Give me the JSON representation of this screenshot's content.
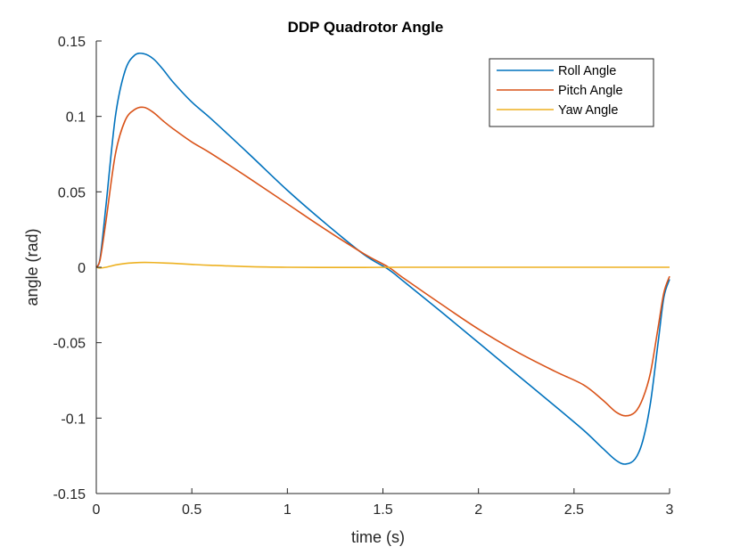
{
  "chart_data": {
    "type": "line",
    "title": "DDP Quadrotor Angle",
    "xlabel": "time (s)",
    "ylabel": "angle (rad)",
    "xlim": [
      0,
      3
    ],
    "ylim": [
      -0.15,
      0.15
    ],
    "xticks": [
      0,
      0.5,
      1,
      1.5,
      2,
      2.5,
      3
    ],
    "xtick_labels": [
      "0",
      "0.5",
      "1",
      "1.5",
      "2",
      "2.5",
      "3"
    ],
    "yticks": [
      -0.15,
      -0.1,
      -0.05,
      0,
      0.05,
      0.1,
      0.15
    ],
    "ytick_labels": [
      "-0.15",
      "-0.1",
      "-0.05",
      "0",
      "0.05",
      "0.1",
      "0.15"
    ],
    "grid": false,
    "legend_position": "top-right",
    "series": [
      {
        "name": "Roll Angle",
        "color": "#0072BD",
        "x": [
          0,
          0.02,
          0.05,
          0.1,
          0.15,
          0.2,
          0.25,
          0.3,
          0.35,
          0.4,
          0.5,
          0.6,
          0.8,
          1.0,
          1.2,
          1.4,
          1.53,
          1.6,
          1.8,
          2.0,
          2.2,
          2.4,
          2.55,
          2.65,
          2.72,
          2.77,
          2.82,
          2.86,
          2.9,
          2.94,
          2.97,
          3.0
        ],
        "y": [
          0,
          0.006,
          0.04,
          0.1,
          0.13,
          0.1405,
          0.1415,
          0.138,
          0.131,
          0.123,
          0.1095,
          0.0985,
          0.075,
          0.051,
          0.029,
          0.0085,
          -0.0015,
          -0.0085,
          -0.029,
          -0.05,
          -0.071,
          -0.092,
          -0.108,
          -0.12,
          -0.128,
          -0.1305,
          -0.127,
          -0.115,
          -0.09,
          -0.05,
          -0.02,
          -0.008
        ]
      },
      {
        "name": "Pitch Angle",
        "color": "#D95319",
        "x": [
          0,
          0.02,
          0.05,
          0.1,
          0.15,
          0.2,
          0.25,
          0.3,
          0.35,
          0.4,
          0.5,
          0.6,
          0.8,
          1.0,
          1.2,
          1.4,
          1.53,
          1.6,
          1.8,
          2.0,
          2.2,
          2.4,
          2.55,
          2.65,
          2.72,
          2.77,
          2.82,
          2.86,
          2.9,
          2.94,
          2.97,
          3.0
        ],
        "y": [
          0,
          0.005,
          0.03,
          0.075,
          0.097,
          0.1045,
          0.106,
          0.1025,
          0.097,
          0.092,
          0.083,
          0.0755,
          0.059,
          0.042,
          0.025,
          0.009,
          0.0,
          -0.0065,
          -0.024,
          -0.041,
          -0.056,
          -0.069,
          -0.078,
          -0.088,
          -0.096,
          -0.0985,
          -0.096,
          -0.087,
          -0.07,
          -0.04,
          -0.017,
          -0.006
        ]
      },
      {
        "name": "Yaw Angle",
        "color": "#EDB120",
        "x": [
          0,
          0.02,
          0.05,
          0.1,
          0.15,
          0.2,
          0.25,
          0.3,
          0.4,
          0.5,
          0.6,
          0.8,
          1.0,
          1.2,
          1.4,
          1.6,
          2.0,
          2.5,
          3.0
        ],
        "y": [
          0,
          -0.0005,
          0.0,
          0.0015,
          0.0025,
          0.003,
          0.0032,
          0.0031,
          0.0026,
          0.0019,
          0.0013,
          0.0004,
          0.0,
          -0.0001,
          -0.0001,
          0.0,
          0.0,
          0.0,
          0.0
        ]
      }
    ]
  }
}
